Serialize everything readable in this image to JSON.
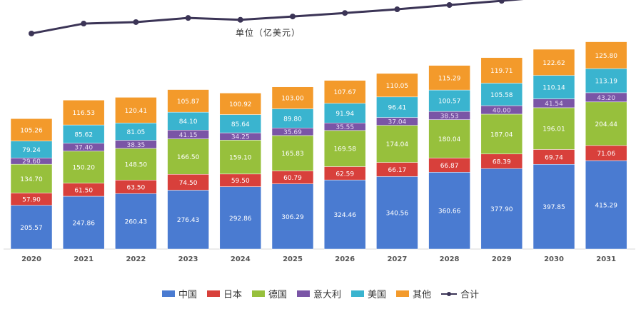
{
  "chart_data": {
    "type": "stacked-bar-line",
    "unit_label": "单位（亿美元）",
    "categories": [
      "2020",
      "2021",
      "2022",
      "2023",
      "2024",
      "2025",
      "2026",
      "2027",
      "2028",
      "2029",
      "2030",
      "2031"
    ],
    "series": [
      {
        "name": "中国",
        "color": "#4a7bd1",
        "values": [
          "205.57",
          "247.86",
          "260.43",
          "276.43",
          "292.86",
          "306.29",
          "324.46",
          "340.56",
          "360.66",
          "377.90",
          "397.85",
          "415.29"
        ]
      },
      {
        "name": "日本",
        "color": "#d8403b",
        "values": [
          "57.90",
          "61.50",
          "63.50",
          "74.50",
          "59.50",
          "60.79",
          "62.59",
          "66.17",
          "66.87",
          "68.39",
          "69.74",
          "71.06"
        ]
      },
      {
        "name": "德国",
        "color": "#97c03c",
        "values": [
          "134.70",
          "150.20",
          "148.50",
          "166.50",
          "159.10",
          "165.83",
          "169.58",
          "174.04",
          "180.04",
          "187.04",
          "196.01",
          "204.44"
        ]
      },
      {
        "name": "意大利",
        "color": "#7a55a6",
        "values": [
          "29.60",
          "37.40",
          "38.35",
          "41.15",
          "34.25",
          "35.69",
          "35.55",
          "37.04",
          "38.53",
          "40.00",
          "41.54",
          "43.20"
        ]
      },
      {
        "name": "美国",
        "color": "#3ab4cf",
        "values": [
          "79.24",
          "85.62",
          "81.05",
          "84.10",
          "85.64",
          "89.80",
          "91.94",
          "96.41",
          "100.57",
          "105.58",
          "110.14",
          "113.19"
        ]
      },
      {
        "name": "其他",
        "color": "#f39a2b",
        "values": [
          "105.26",
          "116.53",
          "120.41",
          "105.87",
          "100.92",
          "103.00",
          "107.67",
          "110.05",
          "115.29",
          "119.71",
          "122.62",
          "125.80"
        ]
      }
    ],
    "total_series": {
      "name": "合计",
      "color": "#3b3456"
    },
    "ylim": [
      0,
      1100
    ]
  }
}
